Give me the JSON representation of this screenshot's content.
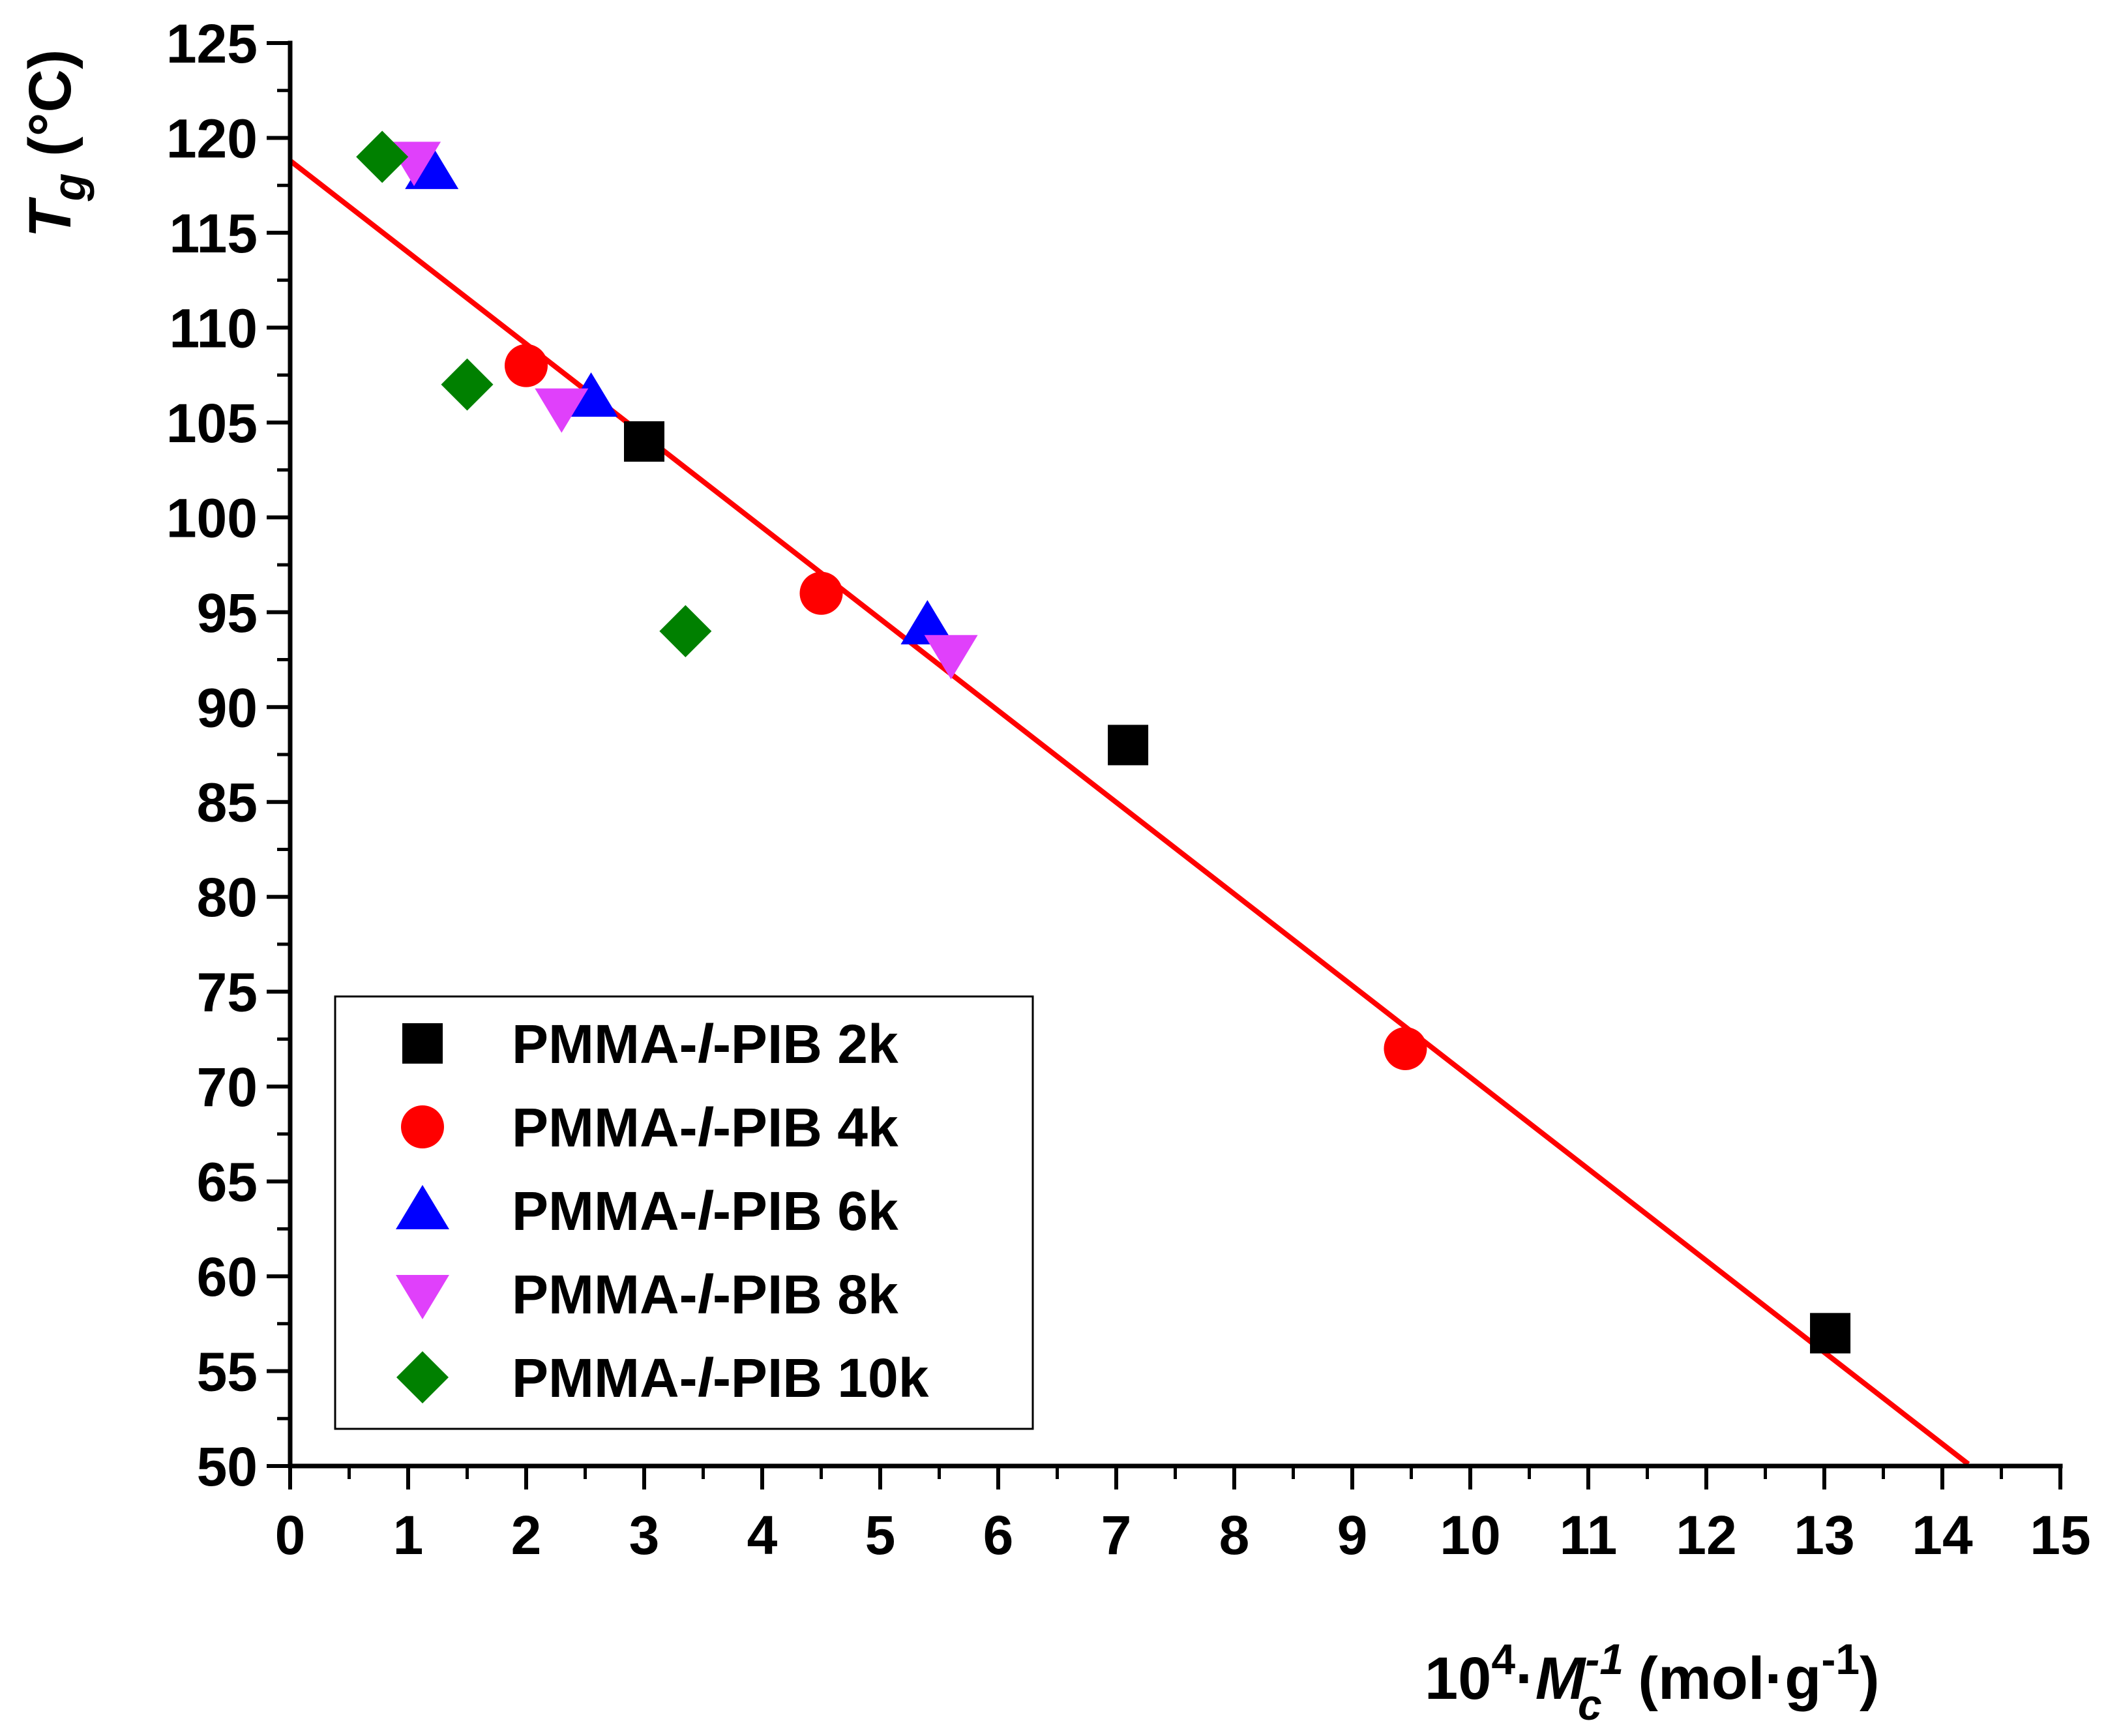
{
  "chart_data": {
    "type": "scatter",
    "xlim": [
      0,
      15
    ],
    "ylim": [
      50,
      125
    ],
    "x_ticks": [
      "0",
      "1",
      "2",
      "3",
      "4",
      "5",
      "6",
      "7",
      "8",
      "9",
      "10",
      "11",
      "12",
      "13",
      "14",
      "15"
    ],
    "y_ticks": [
      "50",
      "55",
      "60",
      "65",
      "70",
      "75",
      "80",
      "85",
      "90",
      "95",
      "100",
      "105",
      "110",
      "115",
      "120",
      "125"
    ],
    "xlabel": {
      "base": "10",
      "exp": "4",
      "dot": "·",
      "var": "M",
      "var_sub": "c",
      "var_sup": "-1",
      "unit_open": " (mol·g",
      "unit_sup": "-1",
      "unit_close": ")"
    },
    "ylabel": {
      "var": "T",
      "var_sub": "g",
      "unit": " (°C)"
    },
    "legend_position": "lower-left",
    "series": [
      {
        "name": "PMMA-/-PIB 2k",
        "legend_prefix": "PMMA-",
        "legend_italic": "l",
        "legend_suffix": "-PIB 2k",
        "marker": "square",
        "color": "#000000",
        "points": [
          [
            3.0,
            104
          ],
          [
            7.1,
            88
          ],
          [
            13.05,
            57
          ]
        ]
      },
      {
        "name": "PMMA-/-PIB 4k",
        "legend_prefix": "PMMA-",
        "legend_italic": "l",
        "legend_suffix": "-PIB 4k",
        "marker": "circle",
        "color": "#ff0000",
        "points": [
          [
            2.0,
            108
          ],
          [
            4.5,
            96
          ],
          [
            9.45,
            72
          ]
        ]
      },
      {
        "name": "PMMA-/-PIB 6k",
        "legend_prefix": "PMMA-",
        "legend_italic": "l",
        "legend_suffix": "-PIB 6k",
        "marker": "triangle-up",
        "color": "#0000ff",
        "points": [
          [
            1.2,
            118.3
          ],
          [
            2.55,
            106.3
          ],
          [
            5.4,
            94.3
          ]
        ]
      },
      {
        "name": "PMMA-/-PIB 8k",
        "legend_prefix": "PMMA-",
        "legend_italic": "l",
        "legend_suffix": "-PIB 8k",
        "marker": "triangle-down",
        "color": "#e040fb",
        "points": [
          [
            1.05,
            118.8
          ],
          [
            2.3,
            105.8
          ],
          [
            5.6,
            92.8
          ]
        ]
      },
      {
        "name": "PMMA-/-PIB 10k",
        "legend_prefix": "PMMA-",
        "legend_italic": "l",
        "legend_suffix": "-PIB 10k",
        "marker": "diamond",
        "color": "#008000",
        "points": [
          [
            0.78,
            119
          ],
          [
            1.5,
            107
          ],
          [
            3.35,
            94
          ]
        ]
      }
    ],
    "fit_line": {
      "color": "#ff0000",
      "x": [
        0,
        14.22
      ],
      "y": [
        118.8,
        50.1
      ]
    }
  }
}
